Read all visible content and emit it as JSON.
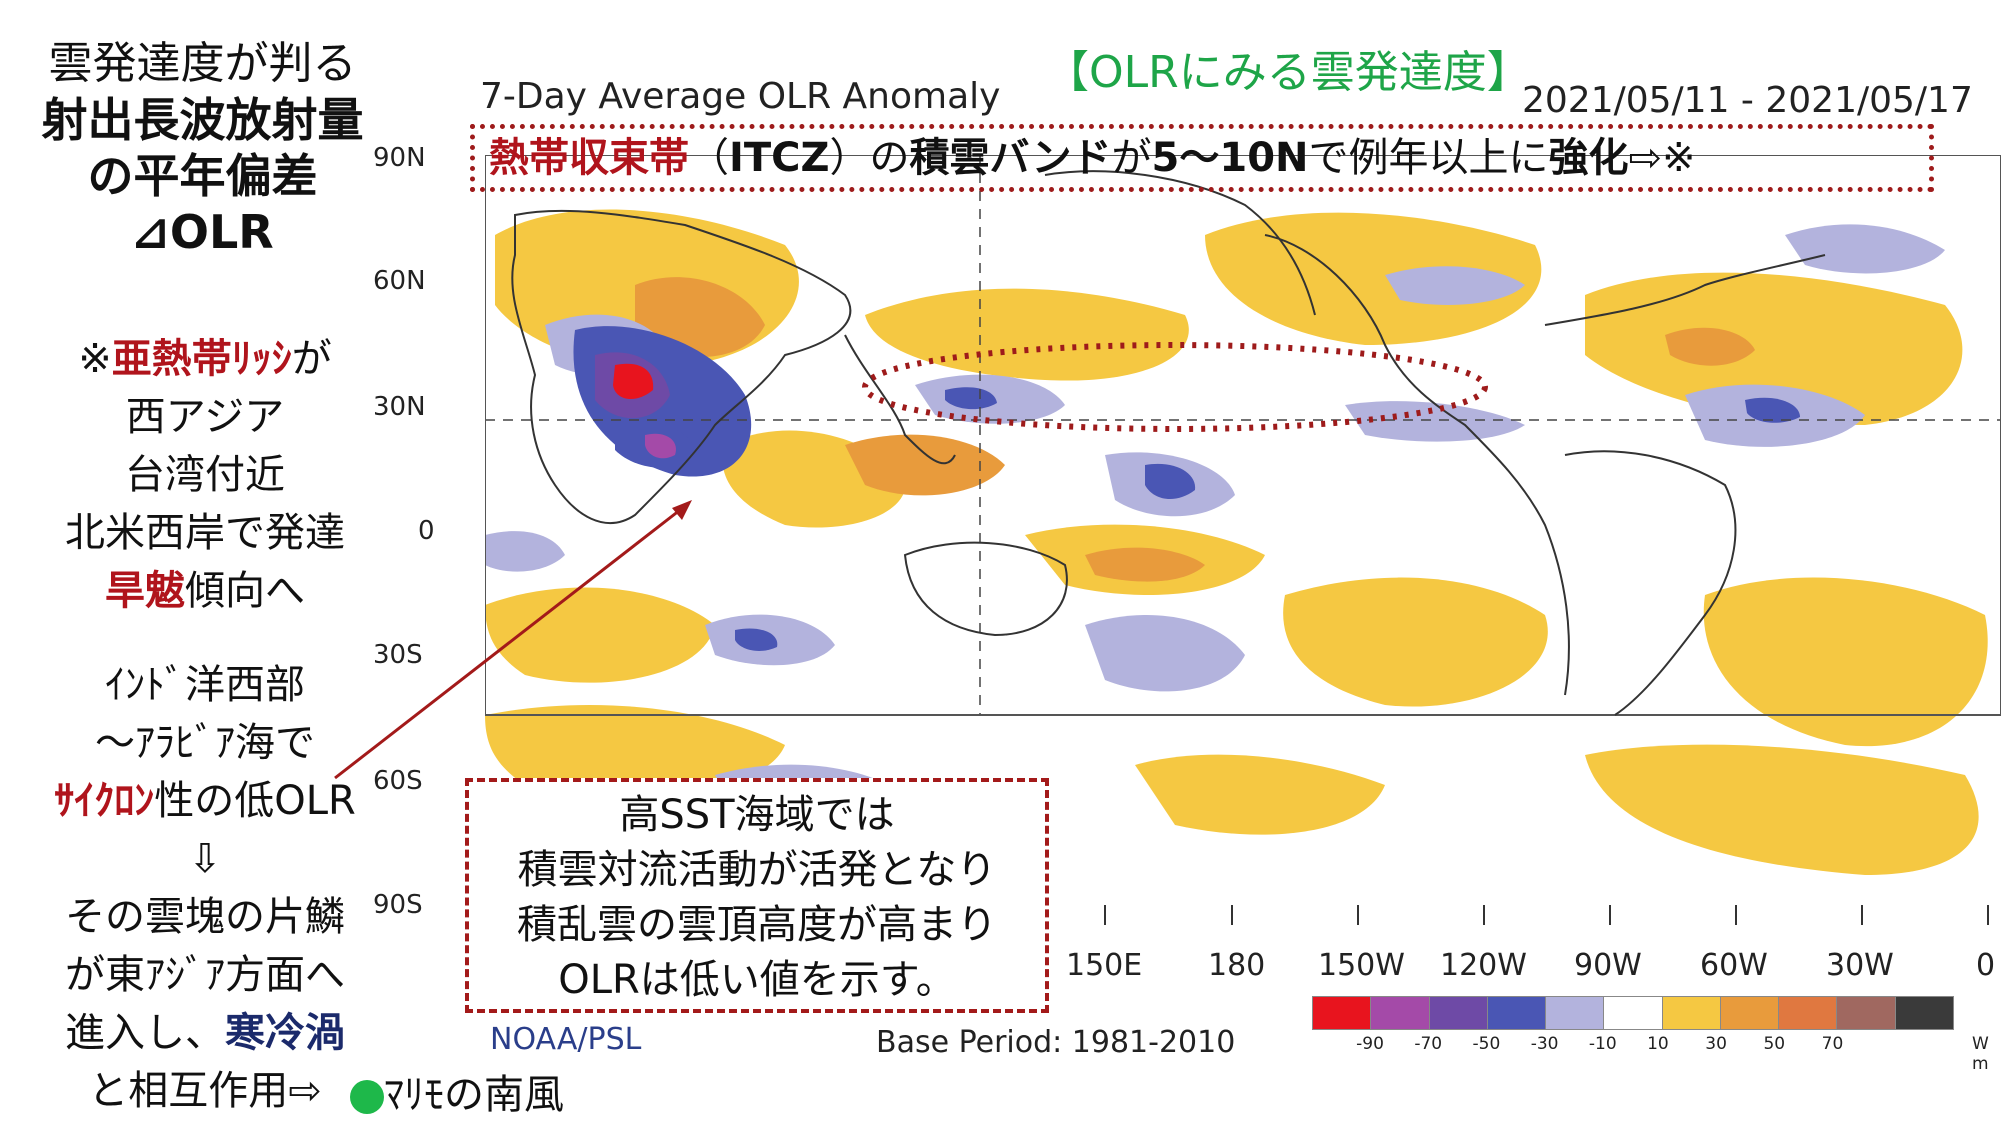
{
  "left_panel": {
    "title_line1": "雲発達度が判る",
    "title_line2": "射出長波放射量",
    "title_line3": "の平年偏差",
    "title_line4": "⊿OLR",
    "note1_prefix": "※",
    "note1_red": "亜熱帯ﾘｯｼ",
    "note1_suffix": "が",
    "note2": "西アジア",
    "note3": "台湾付近",
    "note4": "北米西岸で発達",
    "note5_red": "旱魃",
    "note5_suffix": "傾向へ",
    "note6": "ｲﾝﾄﾞ洋西部",
    "note7": "〜ｱﾗﾋﾞｱ海で",
    "note8_red": "ｻｲｸﾛﾝ",
    "note8_suffix": "性の低OLR",
    "arrow": "⇩",
    "note9": "その雲塊の片鱗",
    "note10": "が東ｱｼﾞｱ方面へ",
    "note11_prefix": "進入し、",
    "note11_navy": "寒冷渦",
    "note12": "と相互作用⇨",
    "note13_suffix": "ﾏﾘﾓの南風"
  },
  "header": {
    "green_heading": "【OLRにみる雲発達度】",
    "map_title": "7-Day Average OLR Anomaly",
    "date_range": "2021/05/11 - 2021/05/17"
  },
  "itcz_annotation": {
    "part1_red": "熱帯収束帯",
    "part2": "（",
    "part3_bold": "ITCZ",
    "part4": "）の",
    "part5_bold": "積雲バンド",
    "part6": "が",
    "part7_bold": "5〜10N",
    "part8": "で例年以上に",
    "part9_bold": "強化",
    "part10": "⇨※"
  },
  "sst_box": {
    "line1": "高SST海域では",
    "line2": "積雲対流活動が活発となり",
    "line3": "積乱雲の雲頂高度が高まり",
    "line4": "OLRは低い値を示す。"
  },
  "map": {
    "lat_labels": [
      "90N",
      "60N",
      "30N",
      "0",
      "30S",
      "60S",
      "90S"
    ],
    "lon_labels": [
      "150E",
      "180",
      "150W",
      "120W",
      "90W",
      "60W",
      "30W",
      "0"
    ],
    "source": "NOAA/PSL",
    "base_period": "Base Period: 1981-2010"
  },
  "legend": {
    "colors": [
      "#e8141e",
      "#a44aa8",
      "#6e4aa6",
      "#4a56b4",
      "#b3b3dd",
      "#ffffff",
      "#f5c842",
      "#e89b3c",
      "#e07840",
      "#a06860",
      "#3a3a3a"
    ],
    "labels": [
      "-90",
      "-70",
      "-50",
      "-30",
      "-10",
      "10",
      "30",
      "50",
      "70"
    ],
    "unit": "W m"
  },
  "colors": {
    "accent_red": "#b0141c",
    "accent_navy": "#1b2a6b",
    "accent_green": "#1ea548"
  }
}
